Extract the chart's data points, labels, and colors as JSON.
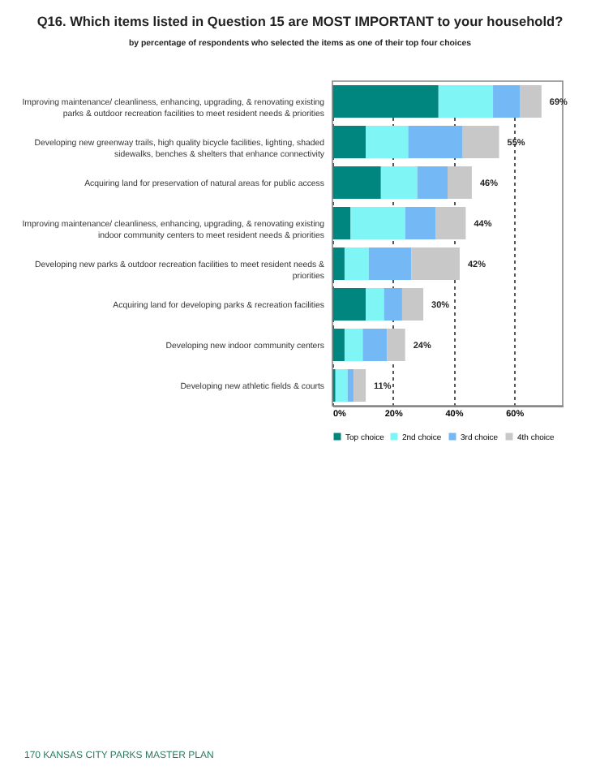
{
  "chart_data": {
    "type": "bar",
    "orientation": "horizontal",
    "stacked": true,
    "title": "Q16. Which items listed in Question 15 are MOST IMPORTANT to your household?",
    "subtitle": "by percentage of respondents who selected the items as one of their top four choices",
    "categories": [
      "Improving maintenance/ cleanliness, enhancing, upgrading, & renovating existing parks & outdoor recreation facilities to meet resident needs & priorities",
      "Developing new greenway trails, high quality bicycle facilities, lighting, shaded sidewalks, benches & shelters that enhance connectivity",
      "Acquiring land for preservation of natural areas for public access",
      "Improving maintenance/ cleanliness, enhancing, upgrading, & renovating existing indoor community centers to meet resident needs & priorities",
      "Developing new parks & outdoor recreation facilities to meet resident needs & priorities",
      "Acquiring land for developing parks & recreation facilities",
      "Developing new indoor community centers",
      "Developing new athletic fields & courts"
    ],
    "series": [
      {
        "name": "Top choice",
        "color": "#00857f",
        "values": [
          35,
          11,
          16,
          6,
          4,
          11,
          4,
          1
        ]
      },
      {
        "name": "2nd choice",
        "color": "#7ff5f5",
        "values": [
          18,
          14,
          12,
          18,
          8,
          6,
          6,
          4
        ]
      },
      {
        "name": "3rd choice",
        "color": "#74b9f5",
        "values": [
          9,
          18,
          10,
          10,
          14,
          6,
          8,
          2
        ]
      },
      {
        "name": "4th choice",
        "color": "#c8c8c8",
        "values": [
          7,
          12,
          8,
          10,
          16,
          7,
          6,
          4
        ]
      }
    ],
    "totals": [
      "69%",
      "55%",
      "46%",
      "44%",
      "42%",
      "30%",
      "24%",
      "11%"
    ],
    "xlim": [
      0,
      76
    ],
    "xticks": [
      {
        "value": 0,
        "label": "0%"
      },
      {
        "value": 20,
        "label": "20%"
      },
      {
        "value": 40,
        "label": "40%"
      },
      {
        "value": 60,
        "label": "60%"
      }
    ],
    "grid": "x",
    "legend": "bottom",
    "annotations": [
      "170 KANSAS CITY PARKS MASTER PLAN"
    ]
  }
}
